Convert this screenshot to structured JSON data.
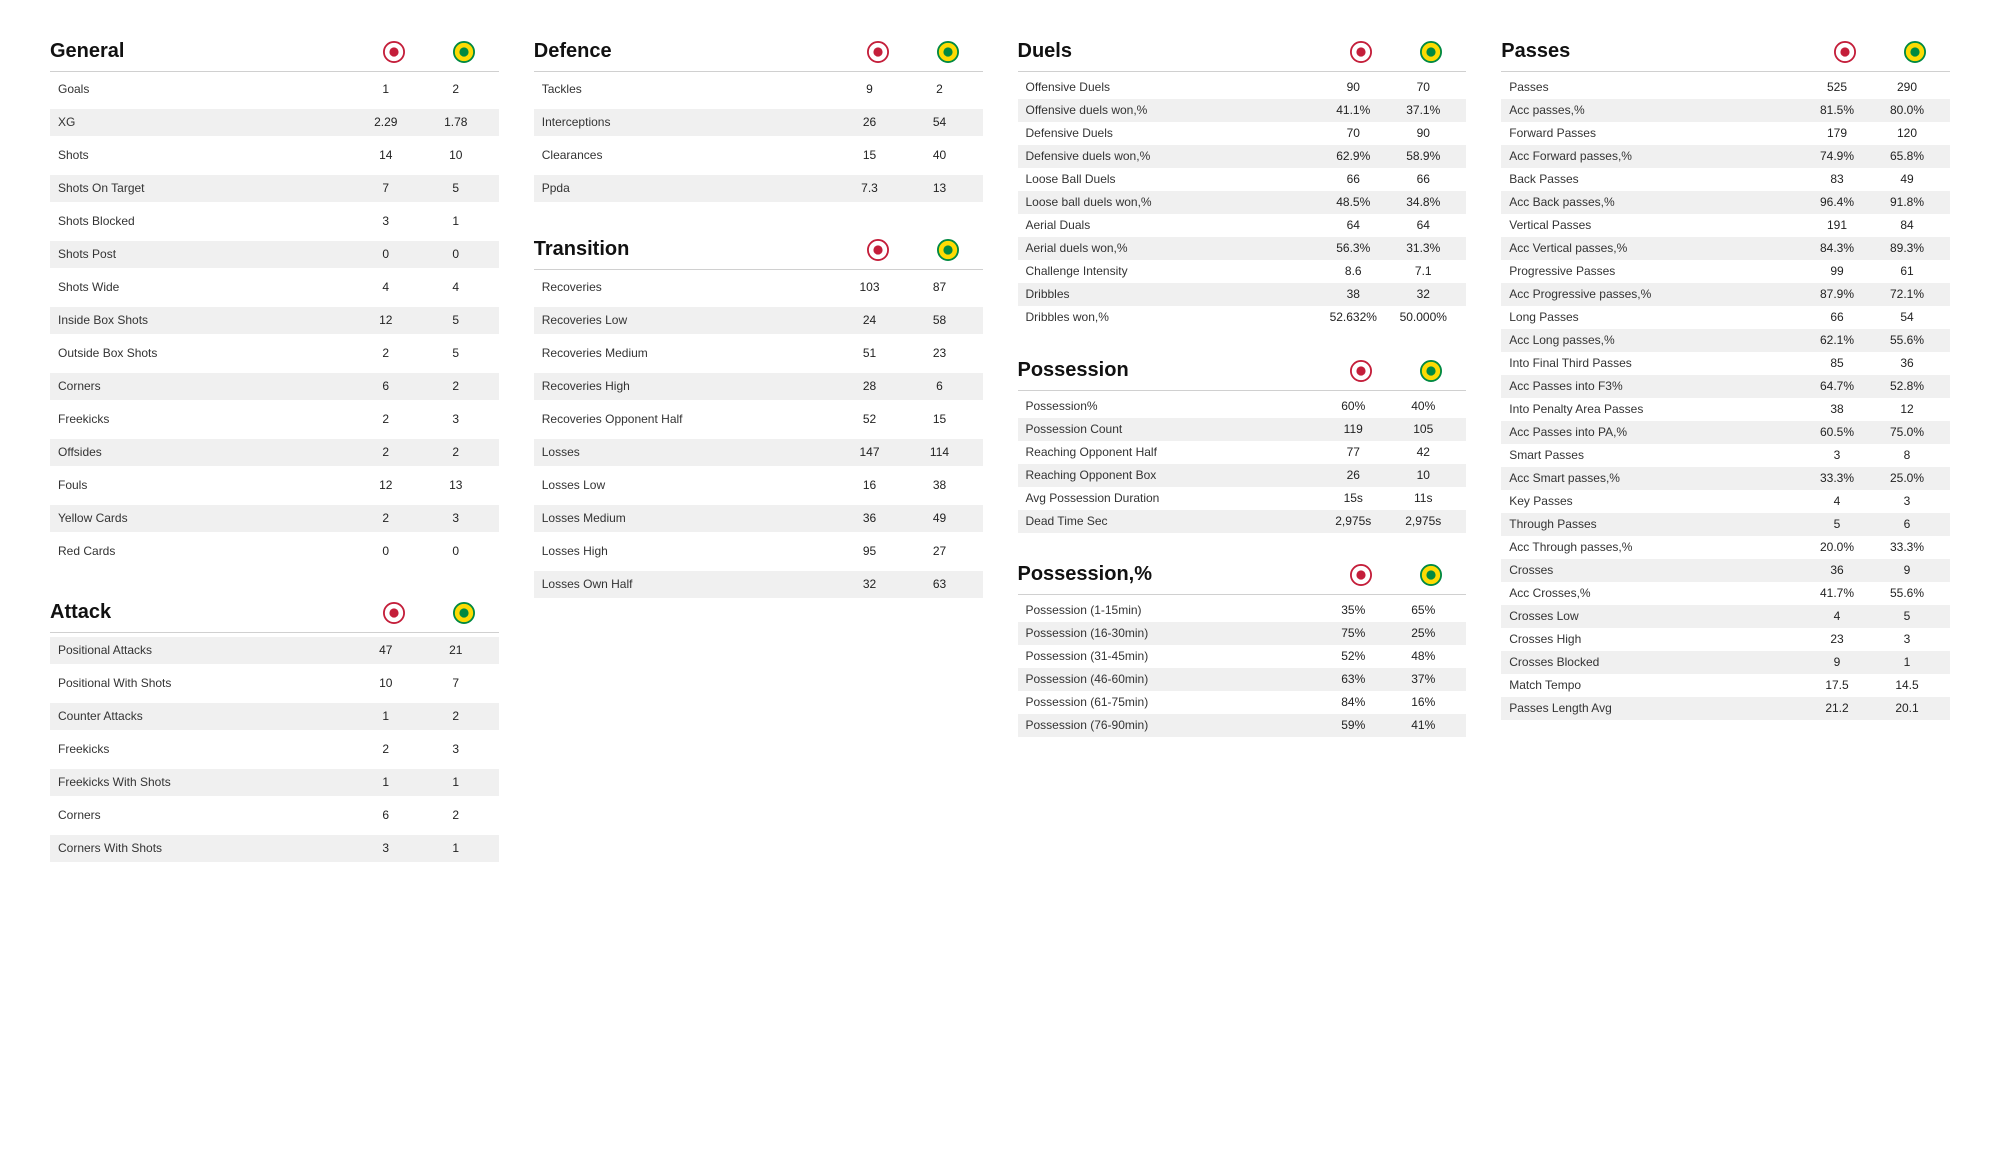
{
  "crests": {
    "team1": {
      "bg": "#ffffff",
      "ring": "#c41e3a",
      "inner": "#c41e3a"
    },
    "team2": {
      "bg": "#fddb03",
      "ring": "#008942",
      "inner": "#008942"
    }
  },
  "columns": [
    {
      "sections": [
        {
          "title": "General",
          "tight": false,
          "rows": [
            {
              "label": "Goals",
              "v1": "1",
              "v2": "2",
              "alt": false
            },
            {
              "label": "XG",
              "v1": "2.29",
              "v2": "1.78",
              "alt": true
            },
            {
              "label": "Shots",
              "v1": "14",
              "v2": "10",
              "alt": false
            },
            {
              "label": "Shots On Target",
              "v1": "7",
              "v2": "5",
              "alt": true
            },
            {
              "label": "Shots Blocked",
              "v1": "3",
              "v2": "1",
              "alt": false
            },
            {
              "label": "Shots Post",
              "v1": "0",
              "v2": "0",
              "alt": true
            },
            {
              "label": "Shots Wide",
              "v1": "4",
              "v2": "4",
              "alt": false
            },
            {
              "label": "Inside Box Shots",
              "v1": "12",
              "v2": "5",
              "alt": true
            },
            {
              "label": "Outside Box Shots",
              "v1": "2",
              "v2": "5",
              "alt": false
            },
            {
              "label": "Corners",
              "v1": "6",
              "v2": "2",
              "alt": true
            },
            {
              "label": "Freekicks",
              "v1": "2",
              "v2": "3",
              "alt": false
            },
            {
              "label": "Offsides",
              "v1": "2",
              "v2": "2",
              "alt": true
            },
            {
              "label": "Fouls",
              "v1": "12",
              "v2": "13",
              "alt": false
            },
            {
              "label": "Yellow Cards",
              "v1": "2",
              "v2": "3",
              "alt": true
            },
            {
              "label": "Red Cards",
              "v1": "0",
              "v2": "0",
              "alt": false
            }
          ]
        },
        {
          "title": "Attack",
          "tight": false,
          "rows": [
            {
              "label": "Positional Attacks",
              "v1": "47",
              "v2": "21",
              "alt": true
            },
            {
              "label": "Positional With Shots",
              "v1": "10",
              "v2": "7",
              "alt": false
            },
            {
              "label": "Counter Attacks",
              "v1": "1",
              "v2": "2",
              "alt": true
            },
            {
              "label": "Freekicks",
              "v1": "2",
              "v2": "3",
              "alt": false
            },
            {
              "label": "Freekicks With Shots",
              "v1": "1",
              "v2": "1",
              "alt": true
            },
            {
              "label": "Corners",
              "v1": "6",
              "v2": "2",
              "alt": false
            },
            {
              "label": "Corners With Shots",
              "v1": "3",
              "v2": "1",
              "alt": true
            }
          ]
        }
      ]
    },
    {
      "sections": [
        {
          "title": "Defence",
          "tight": false,
          "rows": [
            {
              "label": "Tackles",
              "v1": "9",
              "v2": "2",
              "alt": false
            },
            {
              "label": "Interceptions",
              "v1": "26",
              "v2": "54",
              "alt": true
            },
            {
              "label": "Clearances",
              "v1": "15",
              "v2": "40",
              "alt": false
            },
            {
              "label": "Ppda",
              "v1": "7.3",
              "v2": "13",
              "alt": true
            }
          ]
        },
        {
          "title": "Transition",
          "tight": false,
          "rows": [
            {
              "label": "Recoveries",
              "v1": "103",
              "v2": "87",
              "alt": false
            },
            {
              "label": "Recoveries Low",
              "v1": "24",
              "v2": "58",
              "alt": true
            },
            {
              "label": "Recoveries Medium",
              "v1": "51",
              "v2": "23",
              "alt": false
            },
            {
              "label": "Recoveries High",
              "v1": "28",
              "v2": "6",
              "alt": true
            },
            {
              "label": "Recoveries Opponent Half",
              "v1": "52",
              "v2": "15",
              "alt": false
            },
            {
              "label": "Losses",
              "v1": "147",
              "v2": "114",
              "alt": true
            },
            {
              "label": "Losses Low",
              "v1": "16",
              "v2": "38",
              "alt": false
            },
            {
              "label": "Losses Medium",
              "v1": "36",
              "v2": "49",
              "alt": true
            },
            {
              "label": "Losses High",
              "v1": "95",
              "v2": "27",
              "alt": false
            },
            {
              "label": "Losses Own Half",
              "v1": "32",
              "v2": "63",
              "alt": true
            }
          ]
        }
      ]
    },
    {
      "sections": [
        {
          "title": "Duels",
          "tight": true,
          "rows": [
            {
              "label": "Offensive Duels",
              "v1": "90",
              "v2": "70",
              "alt": false
            },
            {
              "label": "Offensive duels won,%",
              "v1": "41.1%",
              "v2": "37.1%",
              "alt": true
            },
            {
              "label": "Defensive Duels",
              "v1": "70",
              "v2": "90",
              "alt": false
            },
            {
              "label": "Defensive duels won,%",
              "v1": "62.9%",
              "v2": "58.9%",
              "alt": true
            },
            {
              "label": "Loose Ball Duels",
              "v1": "66",
              "v2": "66",
              "alt": false
            },
            {
              "label": "Loose ball duels won,%",
              "v1": "48.5%",
              "v2": "34.8%",
              "alt": true
            },
            {
              "label": "Aerial Duals",
              "v1": "64",
              "v2": "64",
              "alt": false
            },
            {
              "label": "Aerial duels won,%",
              "v1": "56.3%",
              "v2": "31.3%",
              "alt": true
            },
            {
              "label": "Challenge Intensity",
              "v1": "8.6",
              "v2": "7.1",
              "alt": false
            },
            {
              "label": "Dribbles",
              "v1": "38",
              "v2": "32",
              "alt": true
            },
            {
              "label": "Dribbles won,%",
              "v1": "52.632%",
              "v2": "50.000%",
              "alt": false
            }
          ]
        },
        {
          "title": "Possession",
          "tight": true,
          "rows": [
            {
              "label": "Possession%",
              "v1": "60%",
              "v2": "40%",
              "alt": false
            },
            {
              "label": "Possession Count",
              "v1": "119",
              "v2": "105",
              "alt": true
            },
            {
              "label": "Reaching Opponent Half",
              "v1": "77",
              "v2": "42",
              "alt": false
            },
            {
              "label": "Reaching Opponent Box",
              "v1": "26",
              "v2": "10",
              "alt": true
            },
            {
              "label": "Avg Possession Duration",
              "v1": "15s",
              "v2": "11s",
              "alt": false
            },
            {
              "label": "Dead Time Sec",
              "v1": "2,975s",
              "v2": "2,975s",
              "alt": true
            }
          ]
        },
        {
          "title": "Possession,%",
          "tight": true,
          "rows": [
            {
              "label": "Possession (1-15min)",
              "v1": "35%",
              "v2": "65%",
              "alt": false
            },
            {
              "label": "Possession (16-30min)",
              "v1": "75%",
              "v2": "25%",
              "alt": true
            },
            {
              "label": "Possession (31-45min)",
              "v1": "52%",
              "v2": "48%",
              "alt": false
            },
            {
              "label": "Possession (46-60min)",
              "v1": "63%",
              "v2": "37%",
              "alt": true
            },
            {
              "label": "Possession (61-75min)",
              "v1": "84%",
              "v2": "16%",
              "alt": false
            },
            {
              "label": "Possession (76-90min)",
              "v1": "59%",
              "v2": "41%",
              "alt": true
            }
          ]
        }
      ]
    },
    {
      "sections": [
        {
          "title": "Passes",
          "tight": true,
          "rows": [
            {
              "label": "Passes",
              "v1": "525",
              "v2": "290",
              "alt": false
            },
            {
              "label": "Acc passes,%",
              "v1": "81.5%",
              "v2": "80.0%",
              "alt": true
            },
            {
              "label": "Forward Passes",
              "v1": "179",
              "v2": "120",
              "alt": false
            },
            {
              "label": "Acc Forward passes,%",
              "v1": "74.9%",
              "v2": "65.8%",
              "alt": true
            },
            {
              "label": "Back Passes",
              "v1": "83",
              "v2": "49",
              "alt": false
            },
            {
              "label": "Acc Back passes,%",
              "v1": "96.4%",
              "v2": "91.8%",
              "alt": true
            },
            {
              "label": "Vertical Passes",
              "v1": "191",
              "v2": "84",
              "alt": false
            },
            {
              "label": "Acc Vertical passes,%",
              "v1": "84.3%",
              "v2": "89.3%",
              "alt": true
            },
            {
              "label": "Progressive Passes",
              "v1": "99",
              "v2": "61",
              "alt": false
            },
            {
              "label": "Acc Progressive passes,%",
              "v1": "87.9%",
              "v2": "72.1%",
              "alt": true
            },
            {
              "label": "Long Passes",
              "v1": "66",
              "v2": "54",
              "alt": false
            },
            {
              "label": "Acc Long passes,%",
              "v1": "62.1%",
              "v2": "55.6%",
              "alt": true
            },
            {
              "label": "Into Final Third Passes",
              "v1": "85",
              "v2": "36",
              "alt": false
            },
            {
              "label": "Acc Passes into F3%",
              "v1": "64.7%",
              "v2": "52.8%",
              "alt": true
            },
            {
              "label": "Into Penalty Area Passes",
              "v1": "38",
              "v2": "12",
              "alt": false
            },
            {
              "label": "Acc Passes into PA,%",
              "v1": "60.5%",
              "v2": "75.0%",
              "alt": true
            },
            {
              "label": "Smart Passes",
              "v1": "3",
              "v2": "8",
              "alt": false
            },
            {
              "label": "Acc Smart passes,%",
              "v1": "33.3%",
              "v2": "25.0%",
              "alt": true
            },
            {
              "label": "Key Passes",
              "v1": "4",
              "v2": "3",
              "alt": false
            },
            {
              "label": "Through Passes",
              "v1": "5",
              "v2": "6",
              "alt": true
            },
            {
              "label": "Acc Through passes,%",
              "v1": "20.0%",
              "v2": "33.3%",
              "alt": false
            },
            {
              "label": "Crosses",
              "v1": "36",
              "v2": "9",
              "alt": true
            },
            {
              "label": "Acc Crosses,%",
              "v1": "41.7%",
              "v2": "55.6%",
              "alt": false
            },
            {
              "label": "Crosses Low",
              "v1": "4",
              "v2": "5",
              "alt": true
            },
            {
              "label": "Crosses High",
              "v1": "23",
              "v2": "3",
              "alt": false
            },
            {
              "label": "Crosses Blocked",
              "v1": "9",
              "v2": "1",
              "alt": true
            },
            {
              "label": "Match Tempo",
              "v1": "17.5",
              "v2": "14.5",
              "alt": false
            },
            {
              "label": "Passes Length Avg",
              "v1": "21.2",
              "v2": "20.1",
              "alt": true
            }
          ]
        }
      ]
    }
  ]
}
